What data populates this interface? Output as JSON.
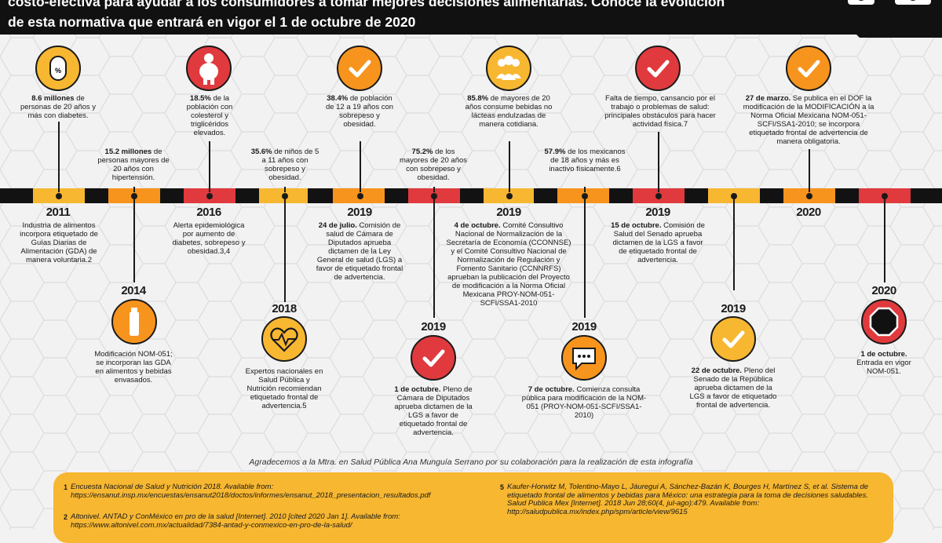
{
  "header": {
    "line1": "costo-efectiva para ayudar a los consumidores a tomar mejores decisiones alimentarias. Conoce la evolución",
    "line2": "de esta normativa que entrará en vigor el 1 de octubre de 2020"
  },
  "colors": {
    "dark": "#1a1a1a",
    "yellow": "#f7b731",
    "orange": "#f7941d",
    "red": "#e03a3e"
  },
  "above": [
    {
      "icon": "pill-icon",
      "color": "#f7b731",
      "bold": "8.6 millones",
      "text": " de personas de 20 años y más con diabetes."
    },
    {
      "icon": "",
      "color": "",
      "bold": "15.2 millones",
      "text": " de personas mayores de 20 años con hipertensión."
    },
    {
      "icon": "obese-person-icon",
      "color": "#e03a3e",
      "bold": "18.5%",
      "text": " de la población con colesterol y triglicéridos elevados."
    },
    {
      "icon": "",
      "color": "",
      "bold": "35.6%",
      "text": " de niños de 5 a 11 años con sobrepeso y obesidad."
    },
    {
      "icon": "check-icon",
      "color": "#f7941d",
      "bold": "38.4%",
      "text": " de población de 12 a 19 años con sobrepeso y obesidad."
    },
    {
      "icon": "",
      "color": "",
      "bold": "75.2%",
      "text": " de los mayores de 20 años con sobrepeso y obesidad."
    },
    {
      "icon": "people-group-icon",
      "color": "#f7b731",
      "bold": "85.8%",
      "text": " de mayores de 20 años consume bebidas no lácteas endulzadas de manera cotidiana."
    },
    {
      "icon": "",
      "color": "",
      "bold": "57.9%",
      "text": " de los mexicanos de 18 años y más es inactivo físicamente.6"
    },
    {
      "icon": "check-icon",
      "color": "#e03a3e",
      "bold": "",
      "text": "Falta de tiempo, cansancio por el trabajo o problemas de salud: principales obstáculos para hacer actividad física.7"
    },
    {
      "icon": "check-icon",
      "color": "#f7941d",
      "bold": "27 de marzo.",
      "text": " Se publica en el DOF la modificación de la MODIFICACIÓN a la Norma Oficial Mexicana NOM-051-SCFI/SSA1-2010; se incorpora etiquetado frontal de advertencia de manera obligatoria."
    }
  ],
  "below": [
    {
      "year": "2011",
      "icon": "",
      "bold": "",
      "text": "Industria de alimentos incorpora etiquetado de Guías Diarias de Alimentación (GDA) de manera voluntaria.2"
    },
    {
      "year": "2014",
      "icon": "bottle-icon",
      "color": "#f7941d",
      "bold": "",
      "text": "Modificación NOM-051; se incorporan las GDA en alimentos y bebidas envasados."
    },
    {
      "year": "2016",
      "icon": "",
      "bold": "",
      "text": "Alerta epidemiológica por aumento de diabetes, sobrepeso y obesidad.3,4"
    },
    {
      "year": "2018",
      "icon": "heart-pulse-icon",
      "color": "#f7b731",
      "bold": "",
      "text": "Expertos nacionales en Salud Pública y Nutrición recomiendan etiquetado frontal de advertencia.5"
    },
    {
      "year": "2019",
      "icon": "",
      "bold": "24 de julio.",
      "text": " Comisión de salud de Cámara de Diputados aprueba dictamen de la Ley General de salud (LGS) a favor de etiquetado frontal de advertencia."
    },
    {
      "year": "2019",
      "icon": "check-icon",
      "color": "#e03a3e",
      "bold": "1 de octubre.",
      "text": " Pleno de Cámara de Diputados aprueba dictamen de la LGS a favor de etiquetado frontal de advertencia."
    },
    {
      "year": "2019",
      "icon": "",
      "bold": "4 de octubre.",
      "text": " Comité Consultivo Nacional de Normalización de la Secretaría de Economía (CCONNSE) y el Comité Consultivo Nacional de Normalización de Regulación y Fomento Sanitario (CCNNRFS) aprueban la publicación del Proyecto de modificación a la Norma Oficial Mexicana PROY-NOM-051-SCFI/SSA1-2010"
    },
    {
      "year": "2019",
      "icon": "chat-bubble-icon",
      "color": "#f7941d",
      "bold": "7 de octubre.",
      "text": " Comienza consulta pública para modificación de la NOM-051 (PROY-NOM-051-SCFI/SSA1-2010)"
    },
    {
      "year": "2019",
      "icon": "",
      "bold": "15 de octubre.",
      "text": " Comisión de Salud del Senado aprueba dictamen de la LGS a favor de etiquetado frontal de advertencia."
    },
    {
      "year": "2019",
      "icon": "check-icon",
      "color": "#f7b731",
      "bold": "22 de octubre.",
      "text": " Pleno del Senado de la República aprueba dictamen de la LGS a favor de etiquetado frontal de advertencia."
    },
    {
      "year": "2020",
      "icon": "",
      "bold": "",
      "text": ""
    },
    {
      "year": "2020",
      "icon": "stop-sign-icon",
      "color": "#e03a3e",
      "bold": "1 de octubre.",
      "text": " Entrada en vigor NOM-051."
    }
  ],
  "thanks": "Agradecemos a la Mtra. en Salud Pública Ana Munguía Serrano por su colaboración para la realización de esta infografía",
  "references": [
    {
      "n": "1",
      "text": "Encuesta Nacional de Salud y Nutrición 2018. Available from: https://ensanut.insp.mx/encuestas/ensanut2018/doctos/informes/ensanut_2018_presentacion_resultados.pdf"
    },
    {
      "n": "2",
      "text": "Altonivel. ANTAD y ConMéxico en pro de la salud [Internet]. 2010 [cited 2020 Jan 1]. Available from: https://www.altonivel.com.mx/actualidad/7384-antad-y-conmexico-en-pro-de-la-salud/"
    },
    {
      "n": "5",
      "text": "Kaufer-Horwitz M, Tolentino-Mayo L, Jáuregui A, Sánchez-Bazán K, Bourges H, Martínez S, et al. Sistema de etiquetado frontal de alimentos y bebidas para México: una estrategia para la toma de decisiones saludables. Salud Publica Mex [Internet]. 2018 Jun 28;60(4, jul-ago):479. Available from: http://saludpublica.mx/index.php/spm/article/view/9615"
    }
  ]
}
